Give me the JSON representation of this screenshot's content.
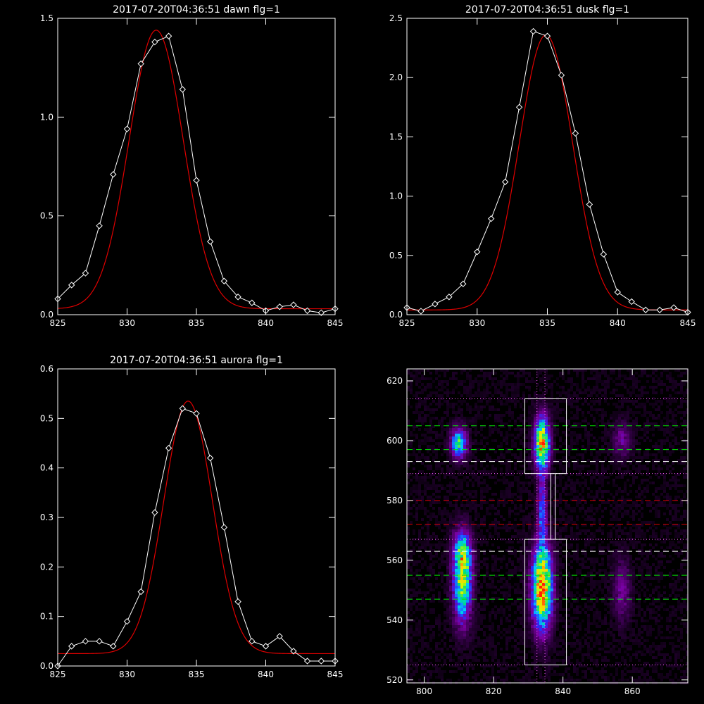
{
  "chart_data": [
    {
      "type": "line",
      "title": "2017-07-20T04:36:51 dawn flg=1",
      "xlim": [
        825,
        845
      ],
      "ylim": [
        0,
        1.5
      ],
      "xticks": [
        825,
        830,
        835,
        840,
        845
      ],
      "yticks": [
        0.0,
        0.5,
        1.0,
        1.5
      ],
      "xticklabels": [
        "825",
        "830",
        "835",
        "840",
        "845"
      ],
      "yticklabels": [
        "0.0",
        "0.5",
        "1.0",
        "1.5"
      ],
      "observed": {
        "x": [
          825,
          826,
          827,
          828,
          829,
          830,
          831,
          832,
          833,
          834,
          835,
          836,
          837,
          838,
          839,
          840,
          841,
          842,
          843,
          844,
          845
        ],
        "y": [
          0.08,
          0.15,
          0.21,
          0.45,
          0.71,
          0.94,
          1.27,
          1.38,
          1.41,
          1.14,
          0.68,
          0.37,
          0.17,
          0.09,
          0.06,
          0.02,
          0.04,
          0.05,
          0.02,
          0.01,
          0.03
        ]
      },
      "fit": {
        "amplitude": 1.41,
        "center": 832.1,
        "sigma": 1.95,
        "offset": 0.03
      }
    },
    {
      "type": "line",
      "title": "2017-07-20T04:36:51 dusk flg=1",
      "xlim": [
        825,
        845
      ],
      "ylim": [
        0,
        2.5
      ],
      "xticks": [
        825,
        830,
        835,
        840,
        845
      ],
      "yticks": [
        0.0,
        0.5,
        1.0,
        1.5,
        2.0,
        2.5
      ],
      "xticklabels": [
        "825",
        "830",
        "835",
        "840",
        "845"
      ],
      "yticklabels": [
        "0.0",
        "0.5",
        "1.0",
        "1.5",
        "2.0",
        "2.5"
      ],
      "observed": {
        "x": [
          825,
          826,
          827,
          828,
          829,
          830,
          831,
          832,
          833,
          834,
          835,
          836,
          837,
          838,
          839,
          840,
          841,
          842,
          843,
          844,
          845
        ],
        "y": [
          0.06,
          0.03,
          0.09,
          0.15,
          0.26,
          0.53,
          0.81,
          1.12,
          1.75,
          2.39,
          2.35,
          2.02,
          1.53,
          0.93,
          0.51,
          0.19,
          0.11,
          0.04,
          0.04,
          0.06,
          0.02
        ]
      },
      "fit": {
        "amplitude": 2.32,
        "center": 834.9,
        "sigma": 1.9,
        "offset": 0.04
      }
    },
    {
      "type": "line",
      "title": "2017-07-20T04:36:51 aurora flg=1",
      "xlim": [
        825,
        845
      ],
      "ylim": [
        0,
        0.6
      ],
      "xticks": [
        825,
        830,
        835,
        840,
        845
      ],
      "yticks": [
        0.0,
        0.1,
        0.2,
        0.3,
        0.4,
        0.5,
        0.6
      ],
      "xticklabels": [
        "825",
        "830",
        "835",
        "840",
        "845"
      ],
      "yticklabels": [
        "0.0",
        "0.1",
        "0.2",
        "0.3",
        "0.4",
        "0.5",
        "0.6"
      ],
      "observed": {
        "x": [
          825,
          826,
          827,
          828,
          829,
          830,
          831,
          832,
          833,
          834,
          835,
          836,
          837,
          838,
          839,
          840,
          841,
          842,
          843,
          844,
          845
        ],
        "y": [
          0.0,
          0.04,
          0.05,
          0.05,
          0.04,
          0.09,
          0.15,
          0.31,
          0.44,
          0.52,
          0.51,
          0.42,
          0.28,
          0.13,
          0.05,
          0.04,
          0.06,
          0.03,
          0.01,
          0.01,
          0.01
        ]
      },
      "fit": {
        "amplitude": 0.51,
        "center": 834.4,
        "sigma": 1.75,
        "offset": 0.025
      }
    },
    {
      "type": "heatmap",
      "xlim": [
        795,
        876
      ],
      "ylim": [
        519,
        624
      ],
      "xticks": [
        800,
        820,
        840,
        860
      ],
      "yticks": [
        520,
        540,
        560,
        580,
        600,
        620
      ],
      "xticklabels": [
        "800",
        "820",
        "840",
        "860"
      ],
      "yticklabels": [
        "520",
        "540",
        "560",
        "580",
        "600",
        "620"
      ],
      "colormap": [
        "#000000",
        "#3a0050",
        "#7a00a0",
        "#2a2dff",
        "#00c8ff",
        "#00e070",
        "#c8ff00",
        "#ffd000",
        "#ff2000"
      ],
      "blobs": [
        {
          "x": 810,
          "y": 599,
          "sx": 1.6,
          "sy": 3.5,
          "amp": 0.55
        },
        {
          "x": 811,
          "y": 552,
          "sx": 1.8,
          "sy": 9.0,
          "amp": 0.65
        },
        {
          "x": 811,
          "y": 563,
          "sx": 1.8,
          "sy": 5.0,
          "amp": 0.4
        },
        {
          "x": 834,
          "y": 599,
          "sx": 1.5,
          "sy": 6.0,
          "amp": 0.85
        },
        {
          "x": 834,
          "y": 551,
          "sx": 2.0,
          "sy": 9.5,
          "amp": 0.95
        },
        {
          "x": 834,
          "y": 577,
          "sx": 0.9,
          "sy": 8.0,
          "amp": 0.35
        },
        {
          "x": 857,
          "y": 600,
          "sx": 1.8,
          "sy": 4.0,
          "amp": 0.2
        },
        {
          "x": 857,
          "y": 550,
          "sx": 1.8,
          "sy": 7.0,
          "amp": 0.2
        }
      ],
      "boxes": [
        {
          "x0": 829,
          "x1": 841,
          "y0": 589,
          "y1": 614
        },
        {
          "x0": 829,
          "x1": 841,
          "y0": 525,
          "y1": 567
        }
      ],
      "column_lines": {
        "color": "#ffffff",
        "x": [
          836.5,
          837.8
        ]
      },
      "vertical_dotted": {
        "color": "#ff60ff",
        "x": [
          832.5,
          834.8
        ]
      },
      "horizontal_lines": [
        {
          "y": 614,
          "color": "#ff60ff",
          "style": "dotted"
        },
        {
          "y": 605,
          "color": "#00e000",
          "style": "dashed"
        },
        {
          "y": 597,
          "color": "#00e000",
          "style": "dashed"
        },
        {
          "y": 593,
          "color": "#ffffff",
          "style": "dashed"
        },
        {
          "y": 589,
          "color": "#ff60ff",
          "style": "dotted"
        },
        {
          "y": 580,
          "color": "#e00000",
          "style": "dashed"
        },
        {
          "y": 572,
          "color": "#e00000",
          "style": "dashed"
        },
        {
          "y": 567,
          "color": "#ff60ff",
          "style": "dotted"
        },
        {
          "y": 563,
          "color": "#ffffff",
          "style": "dashed"
        },
        {
          "y": 555,
          "color": "#00e000",
          "style": "dashed"
        },
        {
          "y": 547,
          "color": "#00e000",
          "style": "dashed"
        },
        {
          "y": 525,
          "color": "#ff60ff",
          "style": "dotted"
        }
      ]
    }
  ]
}
